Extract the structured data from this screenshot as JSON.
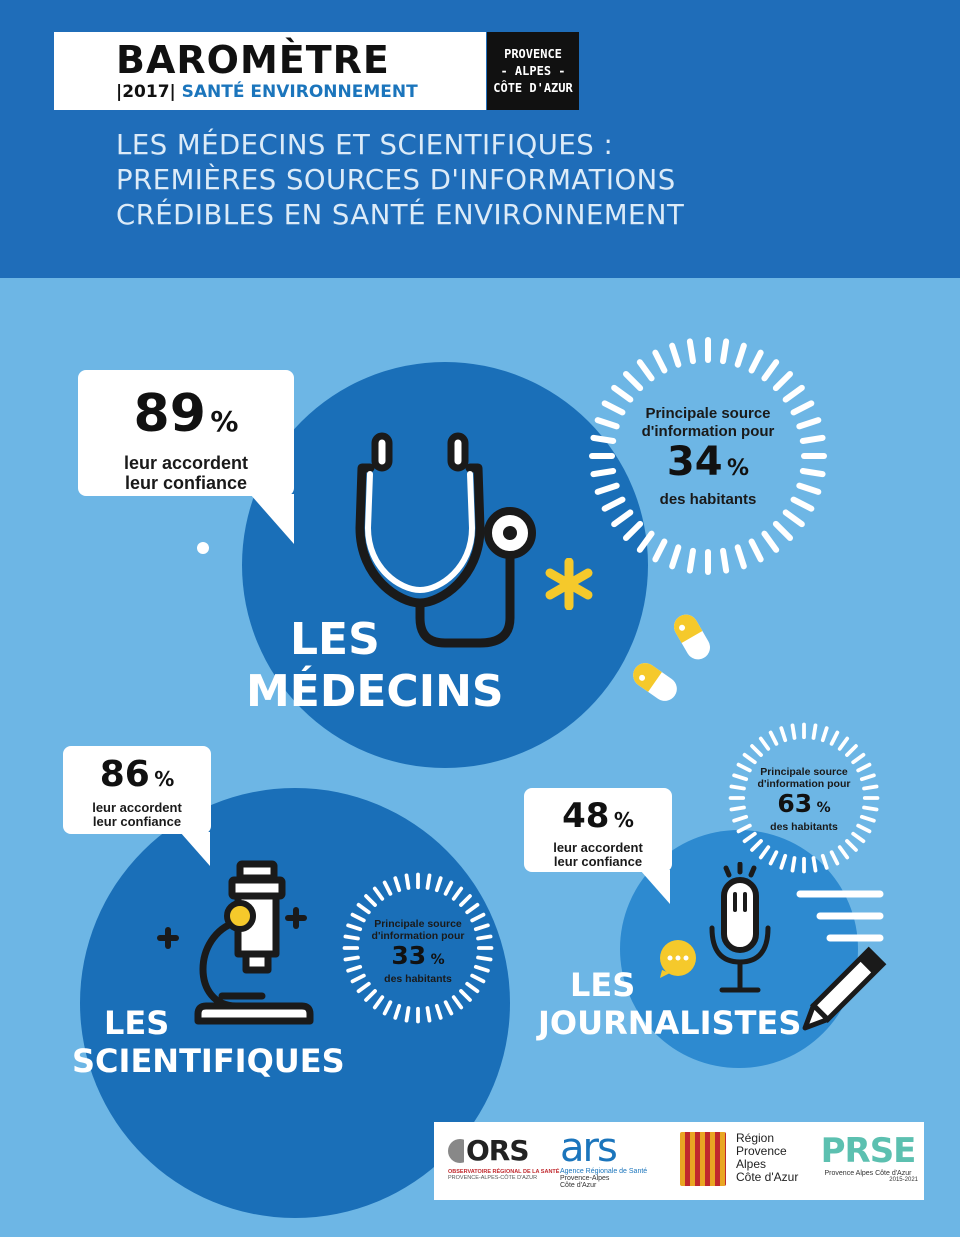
{
  "header": {
    "title": "BAROMÈTRE",
    "year": "|2017|",
    "subtitle": "SANTÉ ENVIRONNEMENT",
    "region_lines": [
      "PROVENCE",
      "- ALPES -",
      "CÔTE D'AZUR"
    ],
    "headline_lines": [
      "LES MÉDECINS ET SCIENTIFIQUES :",
      "PREMIÈRES SOURCES D'INFORMATIONS",
      "CRÉDIBLES EN SANTÉ ENVIRONNEMENT"
    ]
  },
  "medecins": {
    "label_line1": "LES",
    "label_line2": "MÉDECINS",
    "trust_value": "89",
    "trust_sign": "%",
    "trust_text_1": "leur accordent",
    "trust_text_2": "leur confiance",
    "source_text_1": "Principale source",
    "source_text_2": "d'information pour",
    "source_value": "34",
    "source_sign": "%",
    "source_text_3": "des habitants"
  },
  "scientifiques": {
    "label_line1": "LES",
    "label_line2": "SCIENTIFIQUES",
    "trust_value": "86",
    "trust_sign": "%",
    "trust_text_1": "leur accordent",
    "trust_text_2": "leur confiance",
    "source_text_1": "Principale source",
    "source_text_2": "d'information pour",
    "source_value": "33",
    "source_sign": "%",
    "source_text_3": "des habitants"
  },
  "journalistes": {
    "label_line1": "LES",
    "label_line2": "JOURNALISTES",
    "trust_value": "48",
    "trust_sign": "%",
    "trust_text_1": "leur accordent",
    "trust_text_2": "leur confiance",
    "source_text_1": "Principale source",
    "source_text_2": "d'information pour",
    "source_value": "63",
    "source_sign": "%",
    "source_text_3": "des habitants"
  },
  "logos": {
    "ors_text": "ORS",
    "ors_sub1": "OBSERVATOIRE RÉGIONAL DE LA SANTÉ",
    "ors_sub2": "PROVENCE-ALPES-CÔTE D'AZUR",
    "ars_text": "ars",
    "ars_sub1": "Agence Régionale de Santé",
    "ars_sub2": "Provence-Alpes",
    "ars_sub3": "Côte d'Azur",
    "region_1": "Région",
    "region_2": "Provence",
    "region_3": "Alpes",
    "region_4": "Côte d'Azur",
    "prse_text": "PRSE",
    "prse_sub1": "Provence Alpes Côte d'Azur",
    "prse_sub2": "2015-2021"
  },
  "colors": {
    "header_bg": "#1f6db9",
    "page_bg": "#6db6e5",
    "circle_dark": "#1a6fb8",
    "circle_mid": "#2d8ad0",
    "accent_yellow": "#f5c92b",
    "accent_blue": "#1b75bc"
  }
}
